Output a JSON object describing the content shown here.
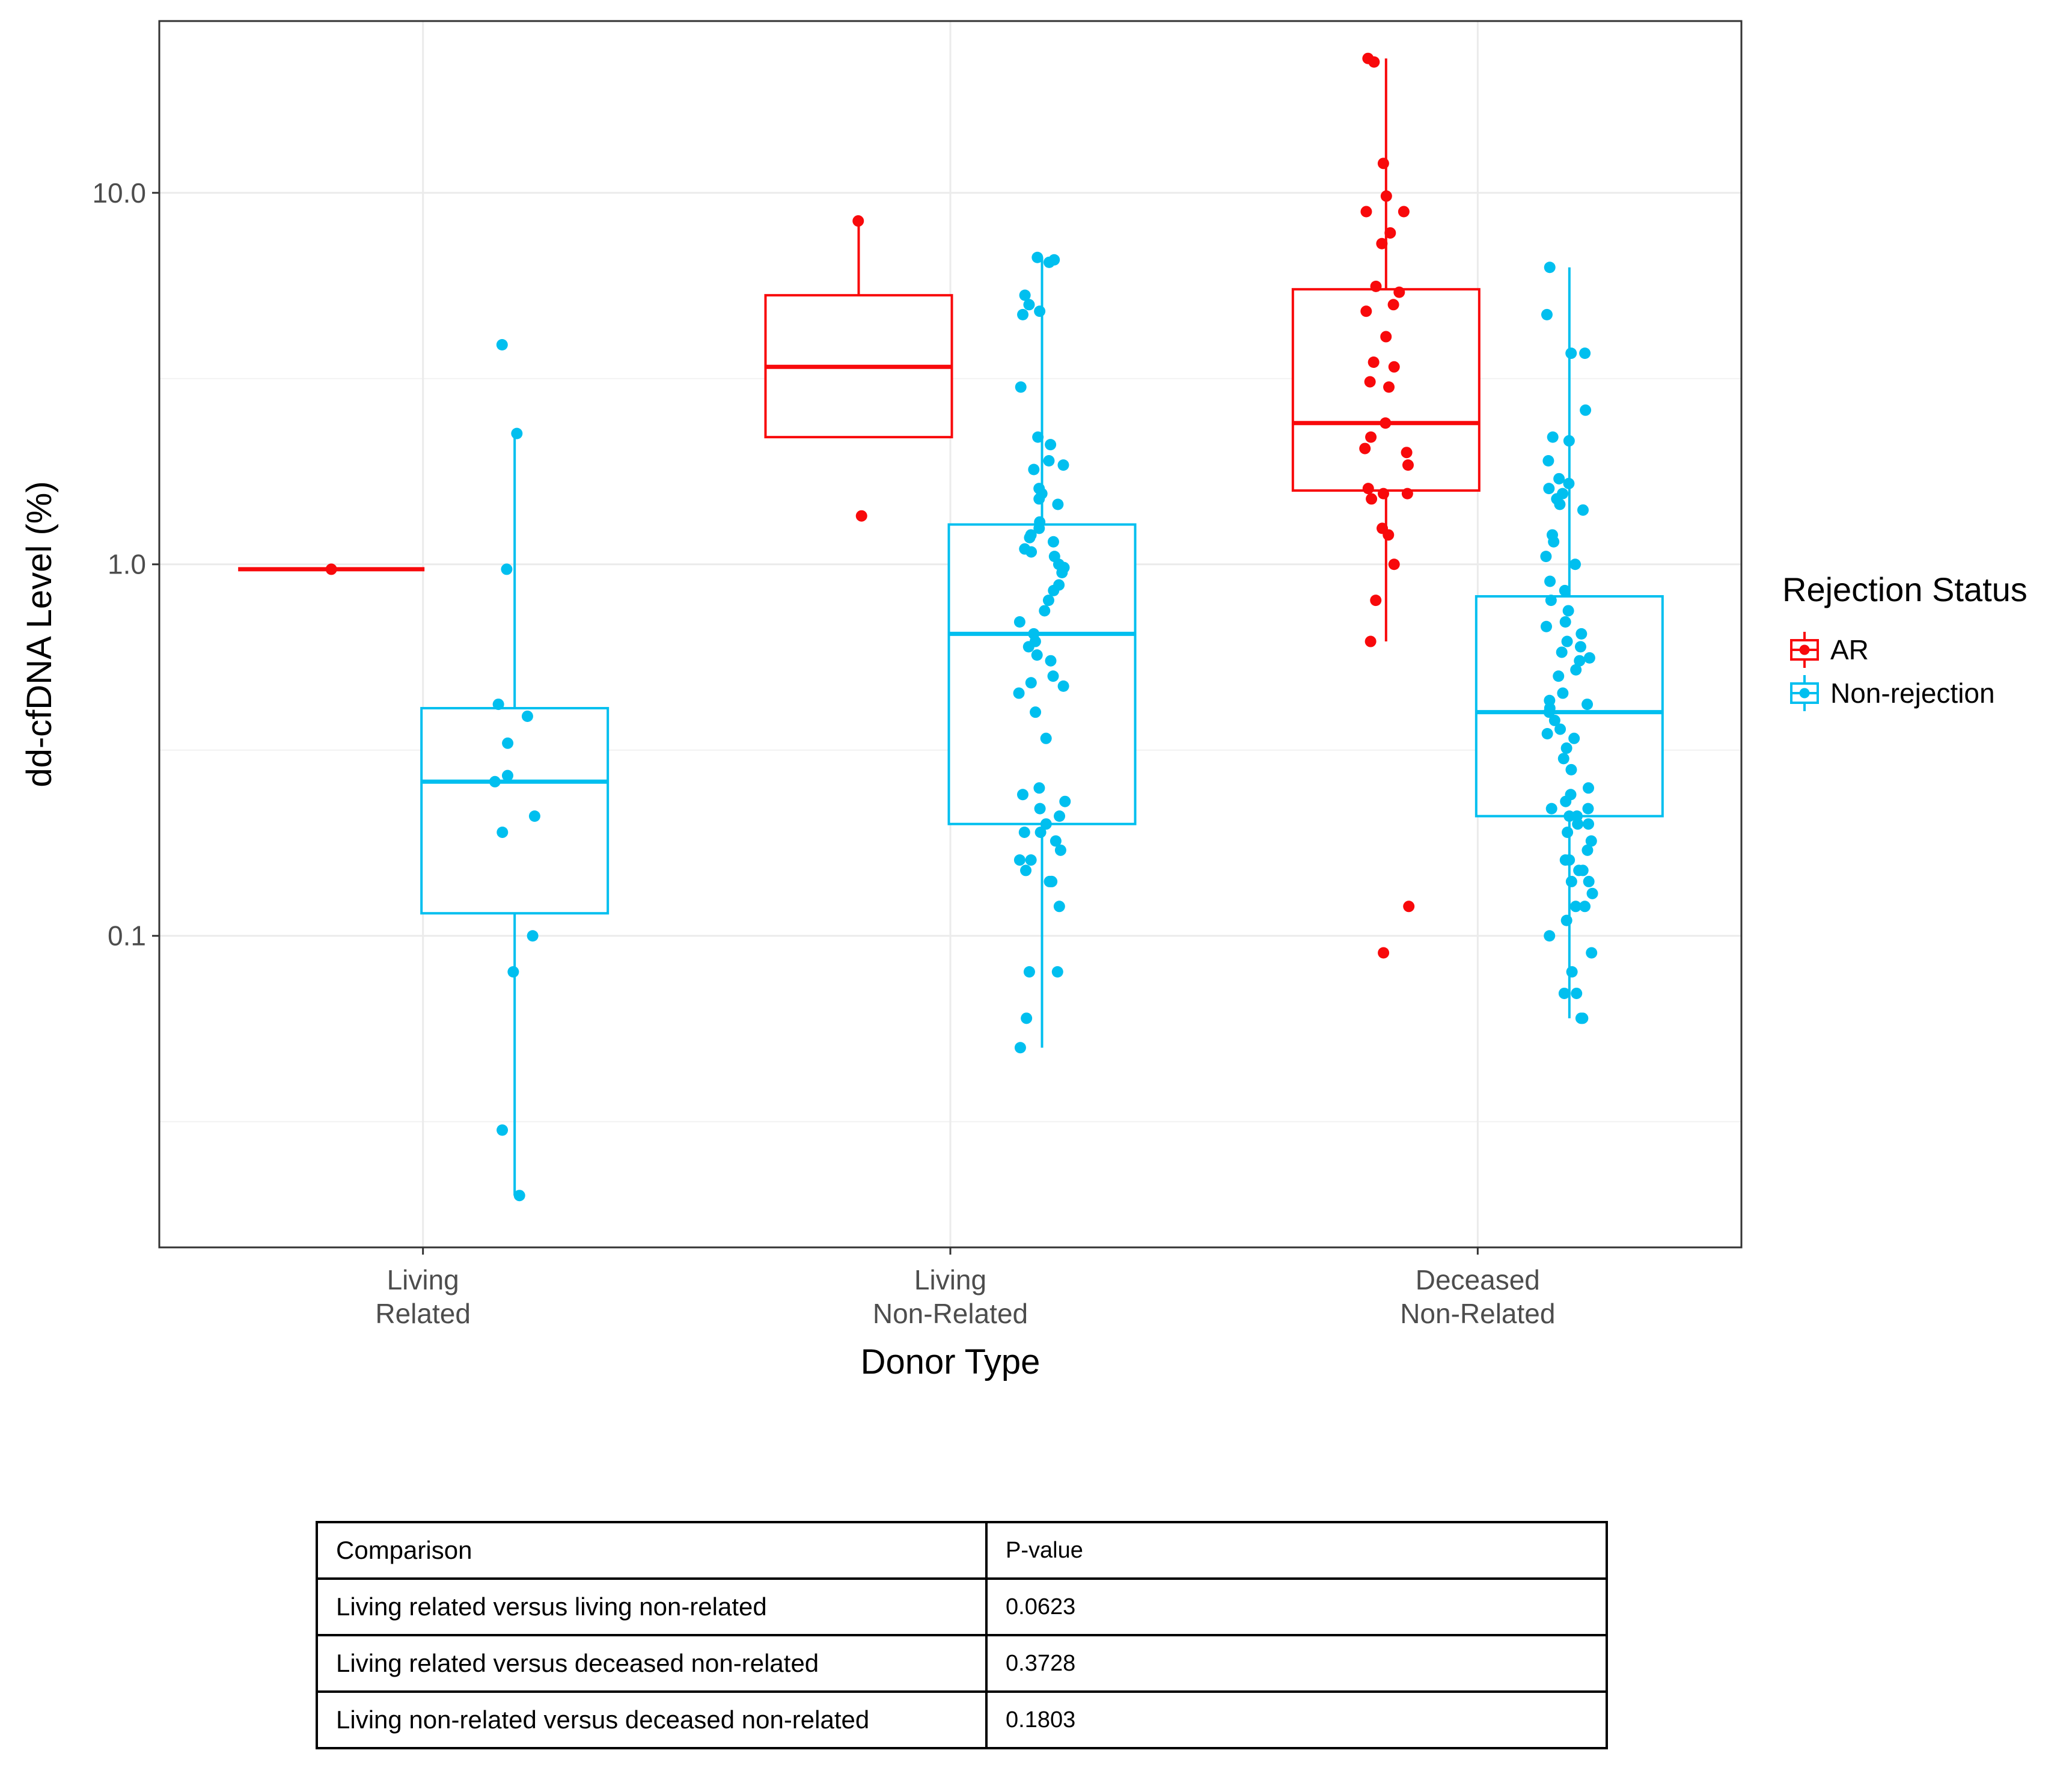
{
  "chart_data": {
    "type": "box",
    "title": "",
    "xlabel": "Donor Type",
    "ylabel": "dd-cfDNA Level (%)",
    "y_scale": "log10",
    "ylim": [
      0.0145,
      29
    ],
    "y_ticks": [
      0.1,
      1.0,
      10.0
    ],
    "y_tick_labels": [
      "0.1",
      "1.0",
      "10.0"
    ],
    "grid": true,
    "categories": [
      {
        "line1": "Living",
        "line2": "Related"
      },
      {
        "line1": "Living",
        "line2": "Non-Related"
      },
      {
        "line1": "Deceased",
        "line2": "Non-Related"
      }
    ],
    "legend": {
      "title": "Rejection Status",
      "position": "right"
    },
    "series": [
      {
        "name": "AR",
        "color": "#f8090b",
        "boxes": [
          {
            "category": 0,
            "whisker_low": 0.97,
            "q1": 0.97,
            "median": 0.97,
            "q3": 0.97,
            "whisker_high": 0.97,
            "points": [
              0.97
            ]
          },
          {
            "category": 1,
            "whisker_low": 2.2,
            "q1": 2.2,
            "median": 3.4,
            "q3": 5.3,
            "whisker_high": 8.3,
            "points": [
              8.4,
              1.35
            ]
          },
          {
            "category": 2,
            "whisker_low": 0.62,
            "q1": 1.58,
            "median": 2.4,
            "q3": 5.5,
            "whisker_high": 23,
            "points": [
              23,
              22.5,
              12,
              9.8,
              8.9,
              8.9,
              7.8,
              7.3,
              5.6,
              5.4,
              5.0,
              4.8,
              4.1,
              3.5,
              3.4,
              3.1,
              3.0,
              2.4,
              2.2,
              2.05,
              2.0,
              1.85,
              1.6,
              1.55,
              1.55,
              1.5,
              1.25,
              1.2,
              1.0,
              0.8,
              0.62,
              0.12,
              0.09
            ]
          }
        ]
      },
      {
        "name": "Non-rejection",
        "color": "#00bfef",
        "boxes": [
          {
            "category": 0,
            "whisker_low": 0.02,
            "q1": 0.115,
            "median": 0.26,
            "q3": 0.41,
            "whisker_high": 2.25,
            "points": [
              3.9,
              2.25,
              0.97,
              0.42,
              0.39,
              0.33,
              0.27,
              0.26,
              0.21,
              0.19,
              0.1,
              0.08,
              0.03,
              0.02
            ]
          },
          {
            "category": 1,
            "whisker_low": 0.05,
            "q1": 0.2,
            "median": 0.65,
            "q3": 1.28,
            "whisker_high": 6.7,
            "points": [
              6.7,
              6.6,
              6.5,
              5.3,
              5.0,
              4.8,
              4.7,
              3.0,
              2.2,
              2.1,
              1.9,
              1.85,
              1.8,
              1.6,
              1.55,
              1.5,
              1.45,
              1.3,
              1.25,
              1.2,
              1.18,
              1.15,
              1.1,
              1.08,
              1.05,
              1.0,
              0.98,
              0.95,
              0.88,
              0.85,
              0.8,
              0.75,
              0.7,
              0.65,
              0.62,
              0.6,
              0.57,
              0.55,
              0.5,
              0.48,
              0.47,
              0.45,
              0.4,
              0.34,
              0.25,
              0.24,
              0.23,
              0.22,
              0.21,
              0.2,
              0.19,
              0.19,
              0.18,
              0.17,
              0.16,
              0.16,
              0.15,
              0.14,
              0.14,
              0.14,
              0.12,
              0.08,
              0.08,
              0.06,
              0.05
            ]
          },
          {
            "category": 2,
            "whisker_low": 0.06,
            "q1": 0.21,
            "median": 0.4,
            "q3": 0.82,
            "whisker_high": 6.3,
            "points": [
              6.3,
              4.7,
              3.7,
              3.7,
              2.6,
              2.2,
              2.15,
              1.9,
              1.7,
              1.65,
              1.6,
              1.55,
              1.5,
              1.45,
              1.4,
              1.2,
              1.15,
              1.05,
              1.0,
              0.9,
              0.85,
              0.8,
              0.75,
              0.7,
              0.68,
              0.65,
              0.62,
              0.6,
              0.58,
              0.56,
              0.55,
              0.52,
              0.5,
              0.45,
              0.43,
              0.42,
              0.41,
              0.4,
              0.38,
              0.36,
              0.35,
              0.34,
              0.32,
              0.3,
              0.28,
              0.25,
              0.24,
              0.23,
              0.22,
              0.22,
              0.21,
              0.21,
              0.2,
              0.2,
              0.19,
              0.18,
              0.17,
              0.16,
              0.16,
              0.15,
              0.15,
              0.14,
              0.14,
              0.13,
              0.12,
              0.12,
              0.11,
              0.1,
              0.09,
              0.08,
              0.07,
              0.07,
              0.06,
              0.06
            ]
          }
        ]
      }
    ]
  },
  "table": {
    "headers": [
      "Comparison",
      "P-value"
    ],
    "rows": [
      [
        "Living related versus living non-related",
        "0.0623"
      ],
      [
        "Living related versus deceased non-related",
        "0.3728"
      ],
      [
        "Living non-related versus deceased non-related",
        "0.1803"
      ]
    ]
  }
}
